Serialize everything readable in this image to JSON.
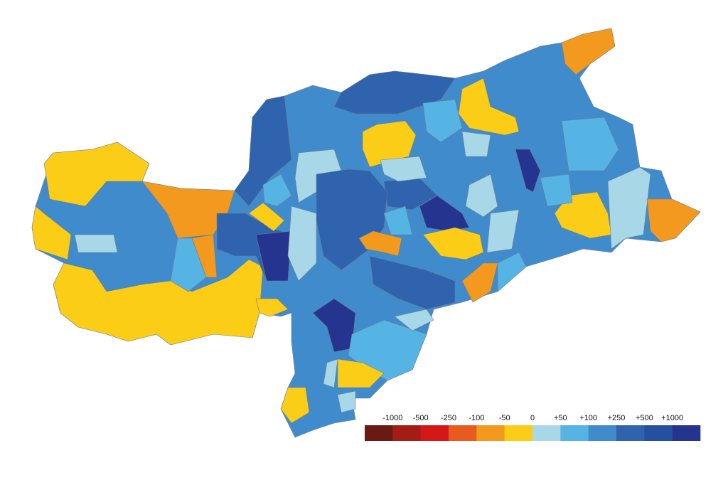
{
  "legend": {
    "labels": [
      "-1000",
      "-500",
      "-250",
      "-100",
      "-50",
      "0",
      "+50",
      "+100",
      "+250",
      "+500",
      "+1000"
    ],
    "colors": [
      "#6b1a12",
      "#a31d15",
      "#d4181a",
      "#e85b1f",
      "#f39a1e",
      "#fccd16",
      "#a8d8e8",
      "#56b4e4",
      "#3f8bcb",
      "#2f63ae",
      "#2550a0",
      "#25358f"
    ]
  }
}
